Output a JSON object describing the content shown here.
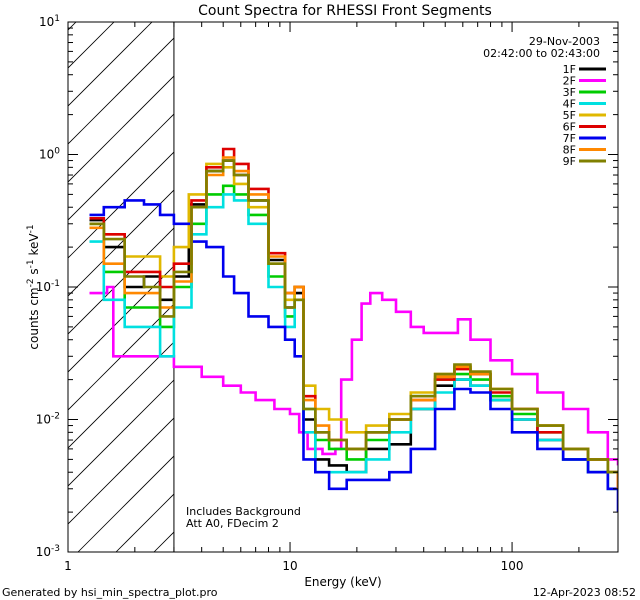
{
  "chart_data": {
    "type": "line",
    "title": "Count Spectra for RHESSI Front Segments",
    "xlabel": "Energy (keV)",
    "ylabel": {
      "prefix": "counts cm",
      "sup1": "-2",
      "mid": " s",
      "sup2": "-1",
      "mid2": " keV",
      "sup3": "-1"
    },
    "xscale": "log",
    "yscale": "log",
    "xlim": [
      1,
      300
    ],
    "ylim": [
      0.001,
      10
    ],
    "x_ticks": [
      {
        "value": 1,
        "label": "1"
      },
      {
        "value": 10,
        "label": "10"
      },
      {
        "value": 100,
        "label": "100"
      }
    ],
    "y_ticks": [
      {
        "value": 0.001,
        "base": "10",
        "exp": "-3"
      },
      {
        "value": 0.01,
        "base": "10",
        "exp": "-2"
      },
      {
        "value": 0.1,
        "base": "10",
        "exp": "-1"
      },
      {
        "value": 1,
        "base": "10",
        "exp": "0"
      },
      {
        "value": 10,
        "base": "10",
        "exp": "1"
      }
    ],
    "date": "29-Nov-2003",
    "time_range": "02:42:00 to 02:43:00",
    "hatched_region_keV": [
      1,
      3
    ],
    "annotations": [
      "Includes Background",
      "Att A0, FDecim 2"
    ],
    "series": [
      {
        "name": "1F",
        "color": "#000000",
        "points": [
          [
            1.25,
            0.32
          ],
          [
            1.45,
            0.2
          ],
          [
            1.8,
            0.1
          ],
          [
            2.2,
            0.12
          ],
          [
            2.6,
            0.08
          ],
          [
            3.0,
            0.12
          ],
          [
            3.5,
            0.42
          ],
          [
            4.2,
            0.75
          ],
          [
            5.0,
            0.9
          ],
          [
            5.6,
            0.7
          ],
          [
            6.5,
            0.45
          ],
          [
            8,
            0.16
          ],
          [
            9.5,
            0.07
          ],
          [
            10.5,
            0.09
          ],
          [
            11.5,
            0.01
          ],
          [
            13,
            0.005
          ],
          [
            15,
            0.0045
          ],
          [
            18,
            0.004
          ],
          [
            22,
            0.006
          ],
          [
            28,
            0.0065
          ],
          [
            35,
            0.012
          ],
          [
            45,
            0.018
          ],
          [
            55,
            0.02
          ],
          [
            65,
            0.018
          ],
          [
            80,
            0.014
          ],
          [
            100,
            0.01
          ],
          [
            130,
            0.007
          ],
          [
            170,
            0.005
          ],
          [
            220,
            0.004
          ],
          [
            270,
            0.003
          ],
          [
            300,
            0.003
          ]
        ]
      },
      {
        "name": "2F",
        "color": "#ff00ff",
        "points": [
          [
            1.25,
            0.09
          ],
          [
            1.5,
            0.1
          ],
          [
            1.6,
            0.03
          ],
          [
            2.0,
            0.03
          ],
          [
            2.5,
            0.03
          ],
          [
            3.0,
            0.025
          ],
          [
            4.0,
            0.021
          ],
          [
            5.0,
            0.018
          ],
          [
            6.0,
            0.016
          ],
          [
            7.0,
            0.014
          ],
          [
            8.5,
            0.012
          ],
          [
            10,
            0.011
          ],
          [
            11,
            0.008
          ],
          [
            12,
            0.006
          ],
          [
            14,
            0.0055
          ],
          [
            16,
            0.006
          ],
          [
            17,
            0.02
          ],
          [
            19,
            0.04
          ],
          [
            21,
            0.075
          ],
          [
            23,
            0.09
          ],
          [
            26,
            0.08
          ],
          [
            30,
            0.065
          ],
          [
            35,
            0.05
          ],
          [
            40,
            0.045
          ],
          [
            50,
            0.045
          ],
          [
            57,
            0.057
          ],
          [
            65,
            0.04
          ],
          [
            80,
            0.028
          ],
          [
            100,
            0.022
          ],
          [
            130,
            0.016
          ],
          [
            170,
            0.012
          ],
          [
            220,
            0.008
          ],
          [
            270,
            0.005
          ],
          [
            300,
            0.0045
          ]
        ]
      },
      {
        "name": "3F",
        "color": "#00cc00",
        "points": [
          [
            1.25,
            0.3
          ],
          [
            1.45,
            0.13
          ],
          [
            1.8,
            0.07
          ],
          [
            2.2,
            0.07
          ],
          [
            2.6,
            0.05
          ],
          [
            3.0,
            0.1
          ],
          [
            3.6,
            0.3
          ],
          [
            4.2,
            0.5
          ],
          [
            5.0,
            0.58
          ],
          [
            5.6,
            0.5
          ],
          [
            6.5,
            0.35
          ],
          [
            8,
            0.12
          ],
          [
            9.5,
            0.06
          ],
          [
            10.5,
            0.1
          ],
          [
            11.5,
            0.012
          ],
          [
            13,
            0.007
          ],
          [
            15,
            0.006
          ],
          [
            18,
            0.005
          ],
          [
            22,
            0.007
          ],
          [
            28,
            0.01
          ],
          [
            35,
            0.015
          ],
          [
            45,
            0.02
          ],
          [
            55,
            0.022
          ],
          [
            65,
            0.02
          ],
          [
            80,
            0.015
          ],
          [
            100,
            0.011
          ],
          [
            130,
            0.008
          ],
          [
            170,
            0.006
          ],
          [
            220,
            0.005
          ],
          [
            270,
            0.004
          ],
          [
            300,
            0.004
          ]
        ]
      },
      {
        "name": "4F",
        "color": "#00e0e0",
        "points": [
          [
            1.25,
            0.22
          ],
          [
            1.45,
            0.08
          ],
          [
            1.8,
            0.05
          ],
          [
            2.2,
            0.05
          ],
          [
            2.6,
            0.03
          ],
          [
            3.0,
            0.07
          ],
          [
            3.6,
            0.25
          ],
          [
            4.2,
            0.4
          ],
          [
            5.0,
            0.5
          ],
          [
            5.6,
            0.45
          ],
          [
            6.5,
            0.3
          ],
          [
            8,
            0.1
          ],
          [
            9.5,
            0.05
          ],
          [
            10.5,
            0.08
          ],
          [
            11.5,
            0.008
          ],
          [
            13,
            0.004
          ],
          [
            15,
            0.004
          ],
          [
            18,
            0.004
          ],
          [
            22,
            0.005
          ],
          [
            28,
            0.008
          ],
          [
            35,
            0.012
          ],
          [
            45,
            0.016
          ],
          [
            55,
            0.02
          ],
          [
            65,
            0.018
          ],
          [
            80,
            0.014
          ],
          [
            100,
            0.01
          ],
          [
            130,
            0.007
          ],
          [
            170,
            0.005
          ],
          [
            220,
            0.004
          ],
          [
            270,
            0.003
          ],
          [
            300,
            0.003
          ]
        ]
      },
      {
        "name": "5F",
        "color": "#e0b800",
        "points": [
          [
            1.25,
            0.3
          ],
          [
            1.45,
            0.25
          ],
          [
            1.8,
            0.17
          ],
          [
            2.2,
            0.17
          ],
          [
            2.6,
            0.12
          ],
          [
            3.0,
            0.2
          ],
          [
            3.5,
            0.5
          ],
          [
            4.2,
            0.85
          ],
          [
            5.0,
            0.8
          ],
          [
            5.6,
            0.6
          ],
          [
            6.5,
            0.4
          ],
          [
            8,
            0.15
          ],
          [
            9.5,
            0.08
          ],
          [
            10.5,
            0.1
          ],
          [
            11.5,
            0.018
          ],
          [
            13,
            0.012
          ],
          [
            15,
            0.01
          ],
          [
            18,
            0.008
          ],
          [
            22,
            0.009
          ],
          [
            28,
            0.011
          ],
          [
            35,
            0.016
          ],
          [
            45,
            0.022
          ],
          [
            55,
            0.025
          ],
          [
            65,
            0.022
          ],
          [
            80,
            0.017
          ],
          [
            100,
            0.012
          ],
          [
            130,
            0.009
          ],
          [
            170,
            0.006
          ],
          [
            220,
            0.005
          ],
          [
            270,
            0.004
          ],
          [
            300,
            0.004
          ]
        ]
      },
      {
        "name": "6F",
        "color": "#dd0000",
        "points": [
          [
            1.25,
            0.33
          ],
          [
            1.45,
            0.25
          ],
          [
            1.8,
            0.13
          ],
          [
            2.2,
            0.13
          ],
          [
            2.6,
            0.1
          ],
          [
            3.0,
            0.15
          ],
          [
            3.6,
            0.45
          ],
          [
            4.2,
            0.8
          ],
          [
            5.0,
            1.1
          ],
          [
            5.6,
            0.85
          ],
          [
            6.5,
            0.55
          ],
          [
            8,
            0.18
          ],
          [
            9.5,
            0.09
          ],
          [
            10.5,
            0.1
          ],
          [
            11.5,
            0.015
          ],
          [
            13,
            0.008
          ],
          [
            15,
            0.007
          ],
          [
            18,
            0.006
          ],
          [
            22,
            0.008
          ],
          [
            28,
            0.01
          ],
          [
            35,
            0.014
          ],
          [
            45,
            0.02
          ],
          [
            55,
            0.024
          ],
          [
            65,
            0.022
          ],
          [
            80,
            0.016
          ],
          [
            100,
            0.012
          ],
          [
            130,
            0.008
          ],
          [
            170,
            0.006
          ],
          [
            220,
            0.005
          ],
          [
            270,
            0.004
          ],
          [
            300,
            0.003
          ]
        ]
      },
      {
        "name": "7F",
        "color": "#0000ee",
        "points": [
          [
            1.25,
            0.35
          ],
          [
            1.45,
            0.4
          ],
          [
            1.8,
            0.45
          ],
          [
            2.2,
            0.42
          ],
          [
            2.6,
            0.35
          ],
          [
            3.0,
            0.3
          ],
          [
            3.6,
            0.22
          ],
          [
            4.2,
            0.2
          ],
          [
            5.0,
            0.12
          ],
          [
            5.6,
            0.09
          ],
          [
            6.5,
            0.06
          ],
          [
            8,
            0.05
          ],
          [
            9.5,
            0.04
          ],
          [
            10.5,
            0.03
          ],
          [
            11.5,
            0.005
          ],
          [
            13,
            0.004
          ],
          [
            15,
            0.003
          ],
          [
            18,
            0.0035
          ],
          [
            22,
            0.0035
          ],
          [
            28,
            0.004
          ],
          [
            35,
            0.006
          ],
          [
            45,
            0.012
          ],
          [
            55,
            0.017
          ],
          [
            65,
            0.016
          ],
          [
            80,
            0.012
          ],
          [
            100,
            0.008
          ],
          [
            130,
            0.006
          ],
          [
            170,
            0.005
          ],
          [
            220,
            0.004
          ],
          [
            270,
            0.003
          ],
          [
            300,
            0.002
          ]
        ]
      },
      {
        "name": "8F",
        "color": "#ff8800",
        "points": [
          [
            1.25,
            0.28
          ],
          [
            1.45,
            0.15
          ],
          [
            1.8,
            0.09
          ],
          [
            2.2,
            0.09
          ],
          [
            2.6,
            0.07
          ],
          [
            3.0,
            0.11
          ],
          [
            3.6,
            0.4
          ],
          [
            4.2,
            0.7
          ],
          [
            5.0,
            0.95
          ],
          [
            5.6,
            0.75
          ],
          [
            6.5,
            0.5
          ],
          [
            8,
            0.17
          ],
          [
            9.5,
            0.09
          ],
          [
            10.5,
            0.1
          ],
          [
            11.5,
            0.014
          ],
          [
            13,
            0.009
          ],
          [
            15,
            0.007
          ],
          [
            18,
            0.006
          ],
          [
            22,
            0.008
          ],
          [
            28,
            0.01
          ],
          [
            35,
            0.014
          ],
          [
            45,
            0.021
          ],
          [
            55,
            0.025
          ],
          [
            65,
            0.022
          ],
          [
            80,
            0.017
          ],
          [
            100,
            0.012
          ],
          [
            130,
            0.009
          ],
          [
            170,
            0.006
          ],
          [
            220,
            0.005
          ],
          [
            270,
            0.004
          ],
          [
            300,
            0.003
          ]
        ]
      },
      {
        "name": "9F",
        "color": "#808000",
        "points": [
          [
            1.25,
            0.3
          ],
          [
            1.45,
            0.23
          ],
          [
            1.8,
            0.12
          ],
          [
            2.2,
            0.1
          ],
          [
            2.6,
            0.06
          ],
          [
            3.0,
            0.13
          ],
          [
            3.6,
            0.4
          ],
          [
            4.2,
            0.75
          ],
          [
            5.0,
            0.9
          ],
          [
            5.6,
            0.7
          ],
          [
            6.5,
            0.45
          ],
          [
            8,
            0.15
          ],
          [
            9.5,
            0.07
          ],
          [
            10.5,
            0.08
          ],
          [
            11.5,
            0.012
          ],
          [
            13,
            0.008
          ],
          [
            15,
            0.007
          ],
          [
            18,
            0.006
          ],
          [
            22,
            0.008
          ],
          [
            28,
            0.01
          ],
          [
            35,
            0.015
          ],
          [
            45,
            0.022
          ],
          [
            55,
            0.026
          ],
          [
            65,
            0.023
          ],
          [
            80,
            0.017
          ],
          [
            100,
            0.012
          ],
          [
            130,
            0.009
          ],
          [
            170,
            0.006
          ],
          [
            220,
            0.005
          ],
          [
            270,
            0.004
          ],
          [
            300,
            0.004
          ]
        ]
      }
    ]
  },
  "footer": {
    "generated_by": "Generated by hsi_min_spectra_plot.pro",
    "timestamp": "12-Apr-2023 08:52"
  }
}
